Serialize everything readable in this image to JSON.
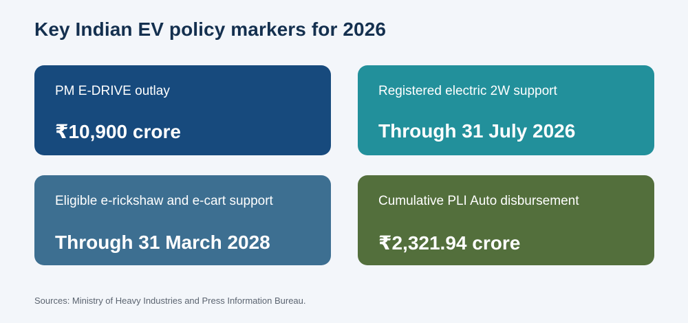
{
  "title": "Key Indian EV policy markers for 2026",
  "cards": [
    {
      "label": "PM E-DRIVE outlay",
      "value": "₹10,900 crore",
      "color": "#174a7d"
    },
    {
      "label": "Registered electric 2W support",
      "value": "Through 31 July 2026",
      "color": "#22909b"
    },
    {
      "label": "Eligible e-rickshaw and e-cart support",
      "value": "Through 31 March 2028",
      "color": "#3d6f91"
    },
    {
      "label": "Cumulative PLI Auto disbursement",
      "value": "₹2,321.94 crore",
      "color": "#536f3c"
    }
  ],
  "source": "Sources: Ministry of Heavy Industries and Press Information Bureau."
}
